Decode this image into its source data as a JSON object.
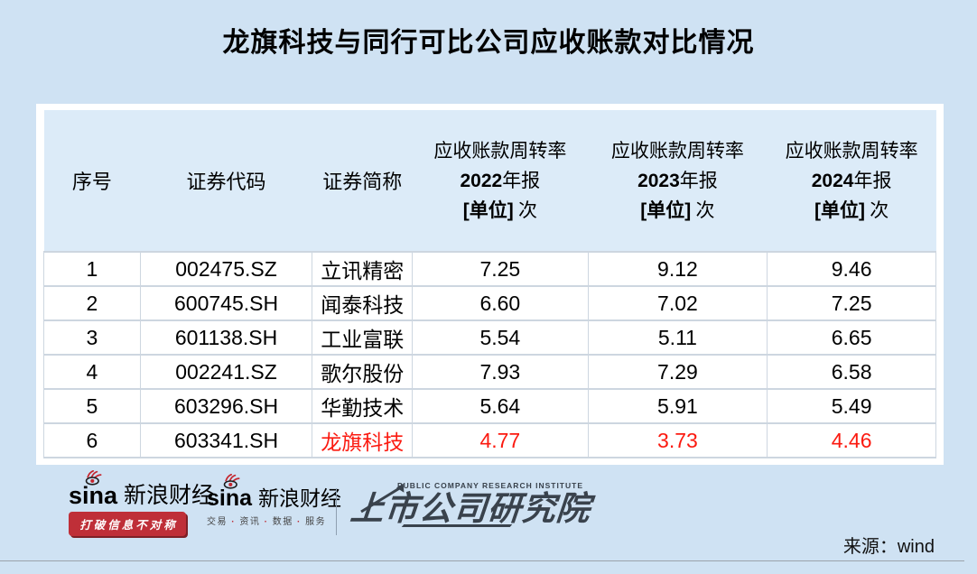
{
  "page": {
    "source_label": "来源：wind"
  },
  "colors": {
    "background": "#cfe2f3",
    "table_header_bg": "#dcebf8",
    "highlight": "#fb1a10",
    "ribbon_red": "#bf2f38",
    "logo_dark": "#39424c"
  },
  "chart_data": {
    "type": "table",
    "title": "龙旗科技与同行可比公司应收账款对比情况",
    "columns": [
      "序号",
      "证券代码",
      "证券简称",
      "应收账款周转率 2022年报 [单位] 次",
      "应收账款周转率 2023年报 [单位] 次",
      "应收账款周转率 2024年报 [单位] 次"
    ],
    "rows": [
      [
        "1",
        "002475.SZ",
        "立讯精密",
        "7.25",
        "9.12",
        "9.46"
      ],
      [
        "2",
        "600745.SH",
        "闻泰科技",
        "6.60",
        "7.02",
        "7.25"
      ],
      [
        "3",
        "601138.SH",
        "工业富联",
        "5.54",
        "5.11",
        "6.65"
      ],
      [
        "4",
        "002241.SZ",
        "歌尔股份",
        "7.93",
        "7.29",
        "6.58"
      ],
      [
        "5",
        "603296.SH",
        "华勤技术",
        "5.64",
        "5.91",
        "5.49"
      ],
      [
        "6",
        "603341.SH",
        "龙旗科技",
        "4.77",
        "3.73",
        "4.46"
      ]
    ],
    "highlight_row_index": 5,
    "highlight_color": "#fb1a10",
    "source": "wind"
  },
  "table": {
    "header": {
      "simple": [
        "序号",
        "证券代码",
        "证券简称"
      ],
      "metrics": [
        {
          "line1": "应收账款周转率",
          "year": "2022",
          "year_suffix": "年报",
          "unit": "[单位]",
          "unit_suffix": " 次"
        },
        {
          "line1": "应收账款周转率",
          "year": "2023",
          "year_suffix": "年报",
          "unit": "[单位]",
          "unit_suffix": " 次"
        },
        {
          "line1": "应收账款周转率",
          "year": "2024",
          "year_suffix": "年报",
          "unit": "[单位]",
          "unit_suffix": " 次"
        }
      ]
    },
    "column_widths_pct": [
      10.8,
      19.3,
      11.2,
      19.7,
      20.1,
      18.9
    ]
  },
  "footer": {
    "sina_logo_1": {
      "brand": "sina",
      "brand_cn": "新浪财经",
      "tagline": "打破信息不对称"
    },
    "sina_logo_2": {
      "brand": "sina",
      "brand_cn": "新浪财经",
      "tagline_parts": [
        "交易",
        "资讯",
        "数据",
        "服务"
      ]
    },
    "institute_logo": {
      "en": "PUBLIC COMPANY RESEARCH INSTITUTE",
      "cn": "上市公司研究院"
    }
  }
}
